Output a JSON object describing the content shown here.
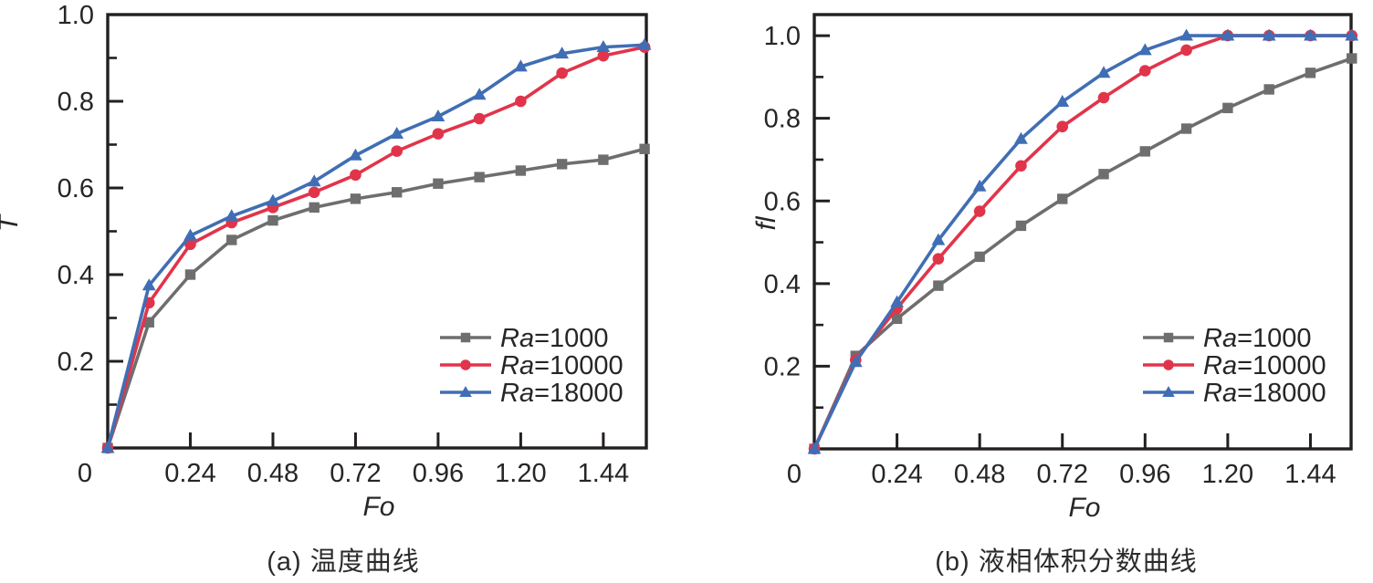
{
  "chart_data": [
    {
      "type": "line",
      "panel": "a",
      "title": "(a) 温度曲线",
      "xlabel": "Fo",
      "ylabel": "T",
      "xlim": [
        0,
        1.565
      ],
      "ylim": [
        0,
        1.0
      ],
      "grid": false,
      "legend_position": "inside lower right",
      "x_ticks": [
        0,
        0.24,
        0.48,
        0.72,
        0.96,
        1.2,
        1.44
      ],
      "x_tick_labels": [
        "0",
        "0.24",
        "0.48",
        "0.72",
        "0.96",
        "1.20",
        "1.44"
      ],
      "y_ticks": [
        0.2,
        0.4,
        0.6,
        0.8,
        1.0
      ],
      "y_tick_labels": [
        "0.2",
        "0.4",
        "0.6",
        "0.8",
        "1.0"
      ],
      "y_minor_ticks": [
        0.1,
        0.3,
        0.5,
        0.7,
        0.9
      ],
      "x": [
        0,
        0.12,
        0.24,
        0.36,
        0.48,
        0.6,
        0.72,
        0.84,
        0.96,
        1.08,
        1.2,
        1.32,
        1.44,
        1.56
      ],
      "series": [
        {
          "name": "Ra=1000",
          "color": "#6e6e6e",
          "marker": "square",
          "values": [
            0,
            0.29,
            0.4,
            0.48,
            0.525,
            0.555,
            0.575,
            0.59,
            0.61,
            0.625,
            0.64,
            0.655,
            0.665,
            0.69
          ]
        },
        {
          "name": "Ra=10000",
          "color": "#e1344a",
          "marker": "circle",
          "values": [
            0,
            0.335,
            0.47,
            0.52,
            0.555,
            0.59,
            0.63,
            0.685,
            0.725,
            0.76,
            0.8,
            0.865,
            0.905,
            0.925
          ]
        },
        {
          "name": "Ra=18000",
          "color": "#406eb4",
          "marker": "triangle",
          "values": [
            0,
            0.375,
            0.49,
            0.535,
            0.57,
            0.615,
            0.675,
            0.725,
            0.765,
            0.815,
            0.88,
            0.91,
            0.925,
            0.93
          ]
        }
      ]
    },
    {
      "type": "line",
      "panel": "b",
      "title": "(b) 液相体积分数曲线",
      "xlabel": "Fo",
      "ylabel": "fl",
      "xlim": [
        0,
        1.558
      ],
      "ylim": [
        0,
        1.051
      ],
      "grid": false,
      "legend_position": "inside lower right",
      "x_ticks": [
        0,
        0.24,
        0.48,
        0.72,
        0.96,
        1.2,
        1.44
      ],
      "x_tick_labels": [
        "0",
        "0.24",
        "0.48",
        "0.72",
        "0.96",
        "1.20",
        "1.44"
      ],
      "y_ticks": [
        0.2,
        0.4,
        0.6,
        0.8,
        1.0
      ],
      "y_tick_labels": [
        "0.2",
        "0.4",
        "0.6",
        "0.8",
        "1.0"
      ],
      "y_minor_ticks": [
        0.1,
        0.3,
        0.5,
        0.7,
        0.9
      ],
      "x": [
        0,
        0.12,
        0.24,
        0.36,
        0.48,
        0.6,
        0.72,
        0.84,
        0.96,
        1.08,
        1.2,
        1.32,
        1.44,
        1.56
      ],
      "series": [
        {
          "name": "Ra=1000",
          "color": "#6e6e6e",
          "marker": "square",
          "values": [
            0,
            0.225,
            0.315,
            0.395,
            0.465,
            0.54,
            0.605,
            0.665,
            0.72,
            0.775,
            0.825,
            0.87,
            0.91,
            0.945
          ]
        },
        {
          "name": "Ra=10000",
          "color": "#e1344a",
          "marker": "circle",
          "values": [
            0,
            0.215,
            0.34,
            0.46,
            0.575,
            0.685,
            0.78,
            0.85,
            0.915,
            0.965,
            1.0,
            1.0,
            1.0,
            1.0
          ]
        },
        {
          "name": "Ra=18000",
          "color": "#406eb4",
          "marker": "triangle",
          "values": [
            0,
            0.21,
            0.355,
            0.505,
            0.635,
            0.75,
            0.84,
            0.91,
            0.965,
            1.0,
            1.0,
            1.0,
            1.0,
            1.0
          ]
        }
      ]
    }
  ],
  "style_colors": {
    "axis": "#231f20",
    "tick_label": "#262626",
    "caption": "#2b2b2b"
  }
}
